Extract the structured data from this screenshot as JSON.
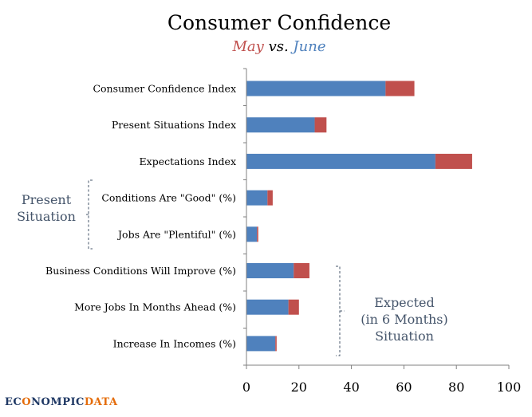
{
  "colors": {
    "june": "#4f81bd",
    "may": "#c0504d",
    "axis": "#808080",
    "brace": "#44546a"
  },
  "chart_data": {
    "type": "bar",
    "orientation": "horizontal",
    "stacked": true,
    "title": "Consumer Confidence",
    "subtitle": {
      "may": "May",
      "vs": "vs.",
      "june": "June"
    },
    "categories": [
      "Consumer Confidence Index",
      "Present Situations Index",
      "Expectations Index",
      "Conditions Are \"Good\" (%)",
      "Jobs Are \"Plentiful\" (%)",
      "Business Conditions Will Improve (%)",
      "More Jobs In Months Ahead (%)",
      "Increase In Incomes (%)"
    ],
    "series": [
      {
        "name": "June",
        "values": [
          53,
          26,
          72,
          8,
          4,
          18,
          16,
          11
        ]
      },
      {
        "name": "May",
        "values": [
          11,
          4.5,
          14,
          2,
          0.5,
          6,
          4,
          0.5
        ]
      }
    ],
    "xlim": [
      0,
      100
    ],
    "xticks": [
      0,
      20,
      40,
      60,
      80,
      100
    ],
    "xlabel": "",
    "ylabel": "",
    "groups": [
      {
        "label_lines": [
          "Present",
          "Situation"
        ],
        "members": [
          3,
          4
        ]
      },
      {
        "label_lines": [
          "Expected",
          "(in 6 Months)",
          "Situation"
        ],
        "members": [
          5,
          6,
          7
        ]
      }
    ]
  },
  "branding": {
    "logo_prefix": "EC",
    "logo_mid": "NOMPIC",
    "logo_suffix": "DATA"
  }
}
